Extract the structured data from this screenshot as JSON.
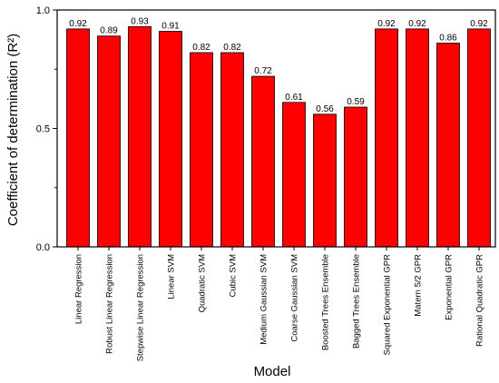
{
  "chart_data": {
    "type": "bar",
    "categories": [
      "Linear Regression",
      "Robust Linear Regression",
      "Stepwise Linear Regression",
      "Linear SVM",
      "Quadratic SVM",
      "Cubic SVM",
      "Medium Gaussian SVM",
      "Coarse Gaussian SVM",
      "Boosted Trees Ensemble",
      "Bagged Trees Ensemble",
      "Squared Exponential GPR",
      "Matern 5/2 GPR",
      "Exponential GPR",
      "Rational Quadratic GPR"
    ],
    "values": [
      0.92,
      0.89,
      0.93,
      0.91,
      0.82,
      0.82,
      0.72,
      0.61,
      0.56,
      0.59,
      0.92,
      0.92,
      0.86,
      0.92
    ],
    "data_labels": [
      "0.92",
      "0.89",
      "0.93",
      "0.91",
      "0.82",
      "0.82",
      "0.72",
      "0.61",
      "0.56",
      "0.59",
      "0.92",
      "0.92",
      "0.86",
      "0.92"
    ],
    "xlabel": "Model",
    "ylabel": "Coefficient of determination (R²)",
    "ylim": [
      0,
      1.0
    ],
    "yticks": [
      "0.0",
      "0.5",
      "1.0"
    ],
    "ytick_values": [
      0.0,
      0.5,
      1.0
    ],
    "bar_color": "#ff0000",
    "bar_edge_color": "#000000",
    "grid": false,
    "legend": "none"
  }
}
